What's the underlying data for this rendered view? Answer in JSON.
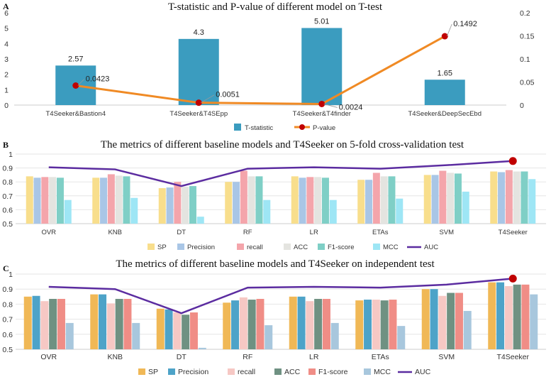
{
  "chart_data": [
    {
      "panel": "A",
      "type": "bar",
      "title": "T-statistic and P-value of different model on T-test",
      "categories": [
        "T4Seeker&Bastion4",
        "T4Seeker&T4SEpp",
        "T4Seeker&T4finder",
        "T4Seeker&DeepSecEbd"
      ],
      "series": [
        {
          "name": "T-statistic",
          "type": "bar",
          "axis": "left",
          "color": "#3b9cbf",
          "values": [
            2.57,
            4.3,
            5.01,
            1.65
          ],
          "labels": [
            "2.57",
            "4.3",
            "5.01",
            "1.65"
          ]
        },
        {
          "name": "P-value",
          "type": "line",
          "axis": "right",
          "color": "#f08a24",
          "marker_color": "#c00000",
          "values": [
            0.0423,
            0.0051,
            0.0024,
            0.1492
          ],
          "labels": [
            "0.0423",
            "0.0051",
            "0.0024",
            "0.1492"
          ]
        }
      ],
      "ylim": [
        0,
        6
      ],
      "yticks": [
        "0",
        "1",
        "2",
        "3",
        "4",
        "5",
        "6"
      ],
      "y2lim": [
        0,
        0.2
      ],
      "y2ticks": [
        "0",
        "0.05",
        "0.1",
        "0.15",
        "0.2"
      ]
    },
    {
      "panel": "B",
      "type": "bar",
      "title": "The metrics of different baseline models and T4Seeker on 5-fold cross-validation test",
      "categories": [
        "OVR",
        "KNB",
        "DT",
        "RF",
        "LR",
        "ETAs",
        "SVM",
        "T4Seeker"
      ],
      "series": [
        {
          "name": "SP",
          "color": "#f8de8c",
          "values": [
            0.84,
            0.83,
            0.755,
            0.8,
            0.84,
            0.815,
            0.85,
            0.875
          ]
        },
        {
          "name": "Precision",
          "color": "#a9c6e6",
          "values": [
            0.83,
            0.83,
            0.76,
            0.8,
            0.83,
            0.815,
            0.85,
            0.87
          ]
        },
        {
          "name": "recall",
          "color": "#f4a5ab",
          "values": [
            0.835,
            0.855,
            0.8,
            0.88,
            0.835,
            0.865,
            0.88,
            0.885
          ]
        },
        {
          "name": "ACC",
          "color": "#e4e4e0",
          "values": [
            0.835,
            0.845,
            0.765,
            0.84,
            0.835,
            0.84,
            0.865,
            0.875
          ]
        },
        {
          "name": "F1-score",
          "color": "#7fcfc6",
          "values": [
            0.83,
            0.84,
            0.77,
            0.84,
            0.83,
            0.84,
            0.86,
            0.875
          ]
        },
        {
          "name": "MCC",
          "color": "#9ee6f5",
          "values": [
            0.67,
            0.685,
            0.55,
            0.67,
            0.67,
            0.68,
            0.73,
            0.82
          ]
        },
        {
          "name": "AUC",
          "type": "line",
          "color": "#5b2ca0",
          "values": [
            0.905,
            0.89,
            0.77,
            0.895,
            0.905,
            0.895,
            0.92,
            0.95
          ]
        }
      ],
      "ylim": [
        0.5,
        1.0
      ],
      "yticks": [
        "0.5",
        "0.6",
        "0.7",
        "0.8",
        "0.9",
        "1"
      ]
    },
    {
      "panel": "C",
      "type": "bar",
      "title": "The metrics of different baseline models and T4Seeker on independent test",
      "categories": [
        "OVR",
        "KNB",
        "DT",
        "RF",
        "LR",
        "ETAs",
        "SVM",
        "T4Seeker"
      ],
      "series": [
        {
          "name": "SP",
          "color": "#f0b856",
          "values": [
            0.85,
            0.865,
            0.77,
            0.81,
            0.85,
            0.825,
            0.9,
            0.945
          ]
        },
        {
          "name": "Precision",
          "color": "#4da3c8",
          "values": [
            0.855,
            0.865,
            0.765,
            0.825,
            0.85,
            0.83,
            0.9,
            0.945
          ]
        },
        {
          "name": "recall",
          "color": "#f6c8c4",
          "values": [
            0.82,
            0.805,
            0.745,
            0.845,
            0.82,
            0.83,
            0.855,
            0.92
          ]
        },
        {
          "name": "ACC",
          "color": "#6f9182",
          "values": [
            0.835,
            0.835,
            0.73,
            0.83,
            0.835,
            0.825,
            0.875,
            0.93
          ]
        },
        {
          "name": "F1-score",
          "color": "#f08d86",
          "values": [
            0.835,
            0.835,
            0.745,
            0.835,
            0.835,
            0.83,
            0.875,
            0.93
          ]
        },
        {
          "name": "MCC",
          "color": "#a8c7dd",
          "values": [
            0.675,
            0.675,
            0.51,
            0.66,
            0.675,
            0.655,
            0.755,
            0.865
          ]
        },
        {
          "name": "AUC",
          "type": "line",
          "color": "#5b2ca0",
          "values": [
            0.915,
            0.9,
            0.74,
            0.91,
            0.915,
            0.91,
            0.93,
            0.97
          ]
        }
      ],
      "ylim": [
        0.5,
        1.0
      ],
      "yticks": [
        "0.5",
        "0.6",
        "0.7",
        "0.8",
        "0.9",
        "1"
      ]
    }
  ],
  "panel_labels": [
    "A",
    "B",
    "C"
  ],
  "colors": {
    "axis": "#cccccc",
    "grid": "#e6e6e6",
    "highlight_marker": "#c00000"
  }
}
